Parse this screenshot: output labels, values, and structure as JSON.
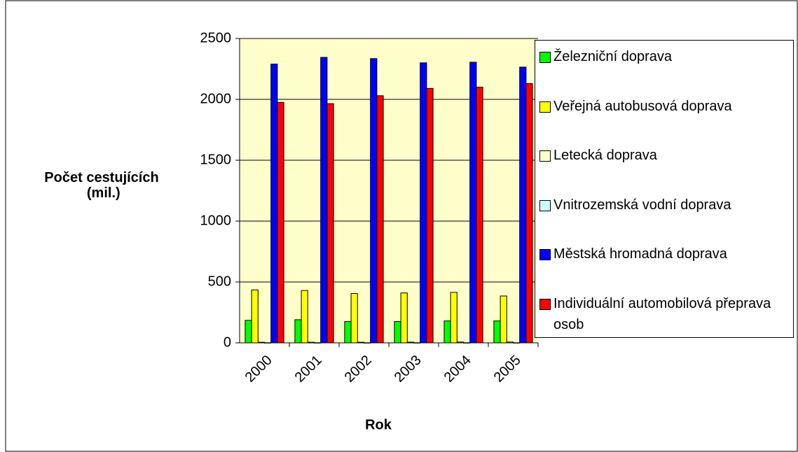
{
  "chart_data": {
    "type": "bar",
    "y_axis_label": "Počet cestujících (mil.)",
    "x_axis_label": "Rok",
    "categories": [
      "2000",
      "2001",
      "2002",
      "2003",
      "2004",
      "2005"
    ],
    "series": [
      {
        "name": "Železniční doprava",
        "color": "#00ff00",
        "values": [
          185,
          190,
          175,
          175,
          180,
          180
        ]
      },
      {
        "name": "Veřejná autobusová doprava",
        "color": "#ffff00",
        "values": [
          435,
          430,
          405,
          410,
          415,
          385
        ]
      },
      {
        "name": "Letecká doprava",
        "color": "#ffffcc",
        "values": [
          5,
          5,
          5,
          6,
          7,
          7
        ]
      },
      {
        "name": "Vnitrozemská vodní doprava",
        "color": "#ccffff",
        "values": [
          1,
          1,
          1,
          1,
          1,
          1
        ]
      },
      {
        "name": "Městská hromadná doprava",
        "color": "#0000ff",
        "values": [
          2290,
          2345,
          2335,
          2300,
          2305,
          2265
        ]
      },
      {
        "name": "Individuální automobilová přeprava osob",
        "color": "#ff0000",
        "values": [
          1975,
          1965,
          2030,
          2090,
          2100,
          2130
        ]
      }
    ],
    "ylim": [
      0,
      2500
    ],
    "yticks": [
      0,
      500,
      1000,
      1500,
      2000,
      2500
    ],
    "grid": true,
    "plot_background": "#ffffcc",
    "legend": "right"
  }
}
